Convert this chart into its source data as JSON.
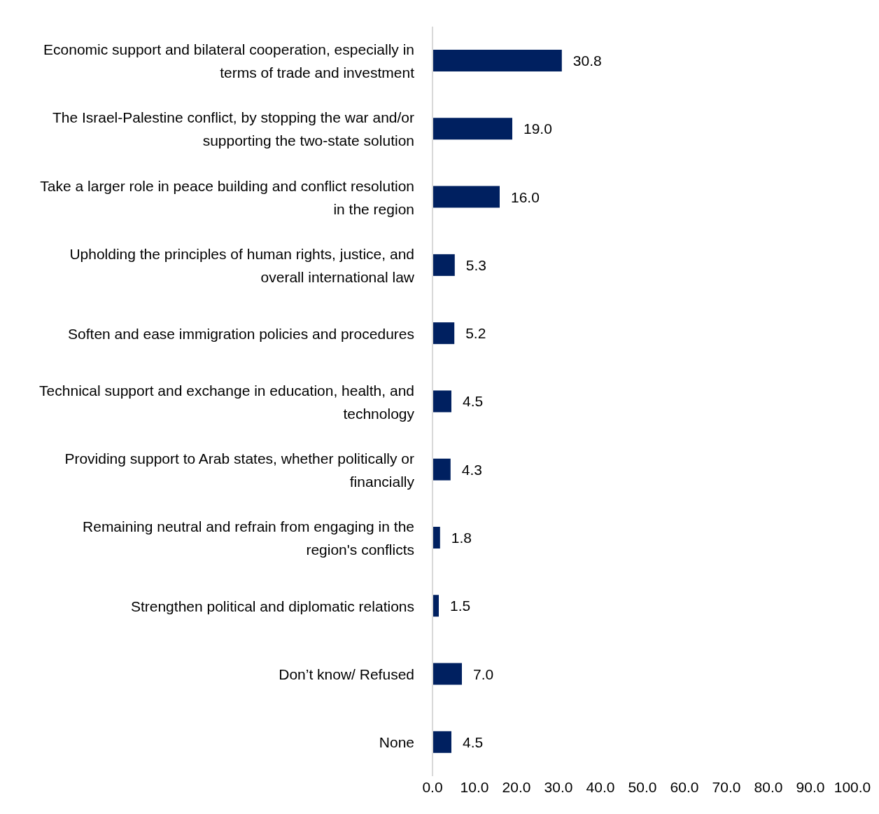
{
  "chart_data": {
    "type": "bar",
    "orientation": "horizontal",
    "categories": [
      "Economic support and bilateral cooperation, especially in terms of trade and investment",
      "The Israel-Palestine conflict, by stopping the war and/or supporting the two-state solution",
      "Take a larger role in peace building and conflict resolution in the region",
      "Upholding the principles of human rights, justice, and overall international law",
      "Soften and ease immigration policies and procedures",
      "Technical support and exchange in education, health, and technology",
      "Providing support to Arab states, whether politically or financially",
      "Remaining neutral and refrain from engaging in the region's conflicts",
      "Strengthen political and diplomatic relations",
      "Don’t know/ Refused",
      "None"
    ],
    "values": [
      30.8,
      19.0,
      16.0,
      5.3,
      5.2,
      4.5,
      4.3,
      1.8,
      1.5,
      7.0,
      4.5
    ],
    "value_labels": [
      "30.8",
      "19.0",
      "16.0",
      "5.3",
      "5.2",
      "4.5",
      "4.3",
      "1.8",
      "1.5",
      "7.0",
      "4.5"
    ],
    "color": "#002060",
    "xlim": [
      0,
      100
    ],
    "xticks": [
      {
        "value": 0,
        "label": "0.0"
      },
      {
        "value": 10,
        "label": "10.0"
      },
      {
        "value": 20,
        "label": "20.0"
      },
      {
        "value": 30,
        "label": "30.0"
      },
      {
        "value": 40,
        "label": "40.0"
      },
      {
        "value": 50,
        "label": "50.0"
      },
      {
        "value": 60,
        "label": "60.0"
      },
      {
        "value": 70,
        "label": "70.0"
      },
      {
        "value": 80,
        "label": "80.0"
      },
      {
        "value": 90,
        "label": "90.0"
      },
      {
        "value": 100,
        "label": "100.0"
      }
    ],
    "grid": false,
    "legend": false
  }
}
